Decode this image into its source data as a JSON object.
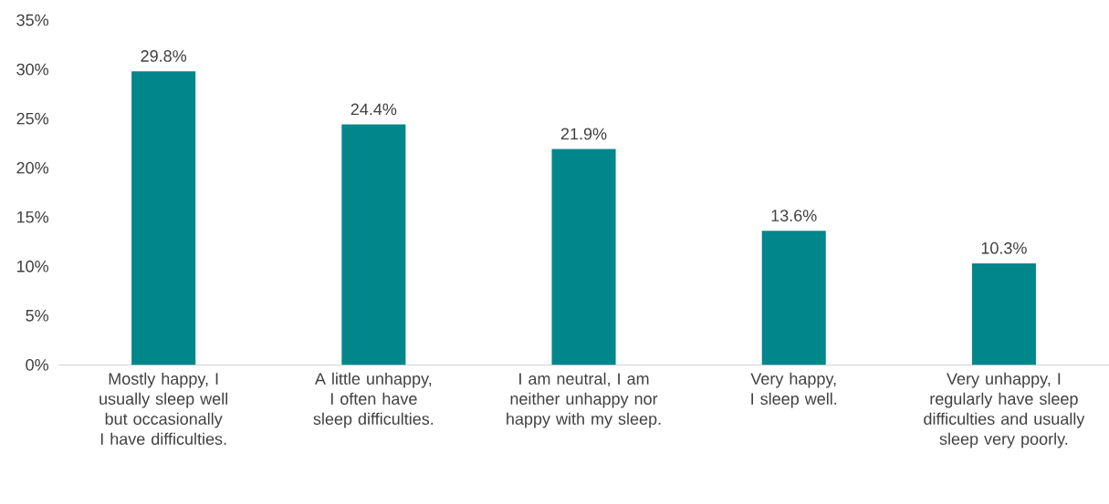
{
  "chart_data": {
    "type": "bar",
    "categories": [
      "Mostly happy, I usually sleep well but occasionally I have difficulties.",
      "A little unhappy, I often have sleep difficulties.",
      "I am neutral, I am neither unhappy nor happy with my sleep.",
      "Very happy, I sleep well.",
      "Very unhappy, I regularly have sleep difficulties and usually sleep very poorly."
    ],
    "values": [
      29.8,
      24.4,
      21.9,
      13.6,
      10.3
    ],
    "value_labels": [
      "29.8%",
      "24.4%",
      "21.9%",
      "13.6%",
      "10.3%"
    ],
    "color": "#00868b",
    "ylim": [
      0,
      35
    ],
    "yticks": [
      {
        "value": 0,
        "label": "0%"
      },
      {
        "value": 5,
        "label": "5%"
      },
      {
        "value": 10,
        "label": "10%"
      },
      {
        "value": 15,
        "label": "15%"
      },
      {
        "value": 20,
        "label": "20%"
      },
      {
        "value": 25,
        "label": "25%"
      },
      {
        "value": 30,
        "label": "30%"
      },
      {
        "value": 35,
        "label": "35%"
      }
    ]
  }
}
